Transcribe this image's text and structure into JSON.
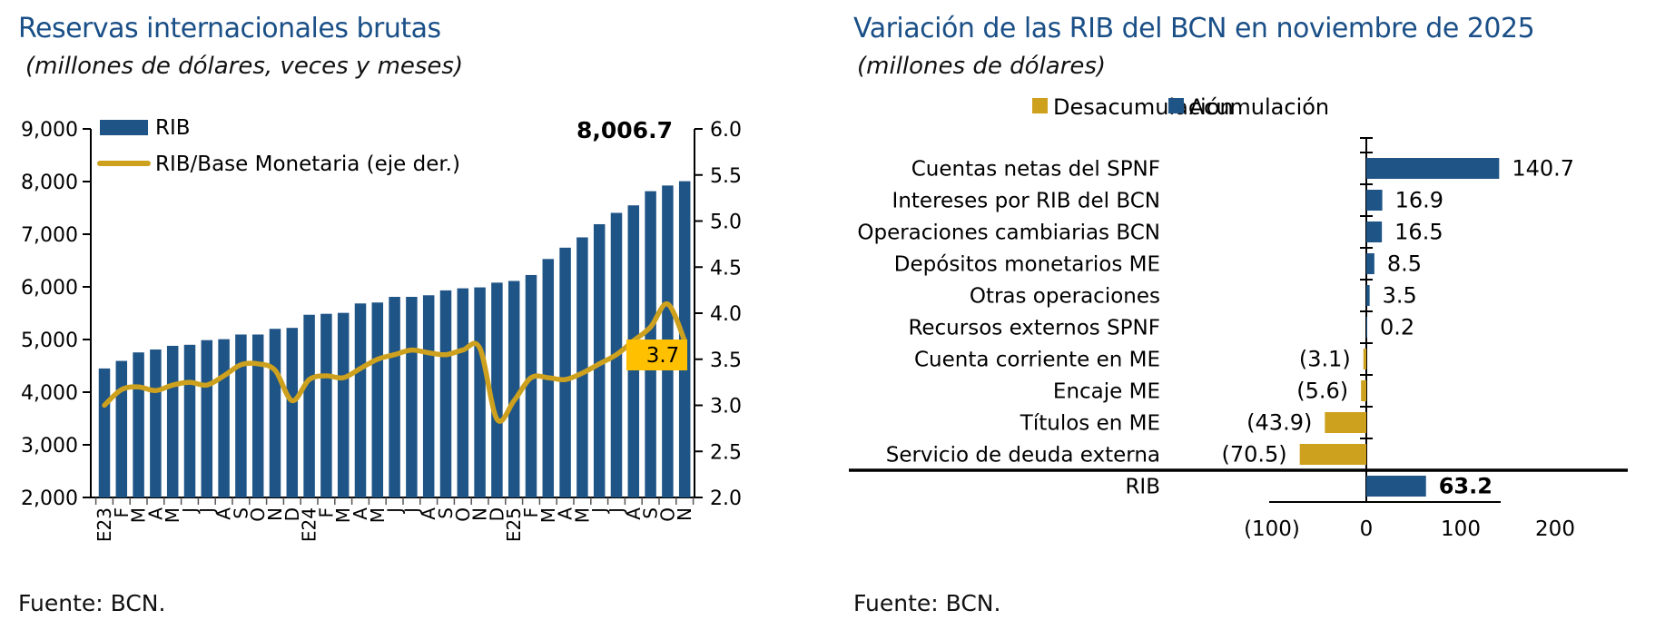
{
  "colors": {
    "title_blue": "#1A4F87",
    "bar_blue": "#1F5486",
    "gold": "#CDA11E",
    "label_box_gold": "#FFC000",
    "axis_black": "#000000"
  },
  "chart_data": [
    {
      "type": "bar",
      "title": "Reservas internacionales brutas",
      "subtitle": "(millones de dólares, veces y meses)",
      "source": "Fuente: BCN.",
      "legend_position": "top-left",
      "categories": [
        "E23",
        "F",
        "M",
        "A",
        "M",
        "J",
        "J",
        "A",
        "S",
        "O",
        "N",
        "D",
        "E24",
        "F",
        "M",
        "A",
        "M",
        "J",
        "J",
        "A",
        "S",
        "O",
        "N",
        "D",
        "E25",
        "F",
        "M",
        "A",
        "M",
        "J",
        "J",
        "A",
        "S",
        "O",
        "N"
      ],
      "series": [
        {
          "name": "RIB",
          "type": "bar",
          "axis": "left",
          "color": "#1F5486",
          "values": [
            4450,
            4594,
            4755,
            4810,
            4880,
            4900,
            4988,
            5006,
            5095,
            5095,
            5203,
            5221,
            5470,
            5488,
            5506,
            5685,
            5703,
            5810,
            5810,
            5840,
            5933,
            5972,
            5990,
            6080,
            6112,
            6225,
            6529,
            6744,
            6940,
            7190,
            7405,
            7548,
            7817,
            7925,
            8006.7
          ]
        },
        {
          "name": "RIB/Base Monetaria (eje der.)",
          "type": "line",
          "axis": "right",
          "color": "#CDA11E",
          "values": [
            3.0,
            3.17,
            3.2,
            3.16,
            3.22,
            3.25,
            3.22,
            3.32,
            3.44,
            3.45,
            3.38,
            3.05,
            3.28,
            3.32,
            3.3,
            3.4,
            3.5,
            3.55,
            3.6,
            3.57,
            3.55,
            3.6,
            3.62,
            2.85,
            3.05,
            3.3,
            3.3,
            3.28,
            3.35,
            3.45,
            3.55,
            3.7,
            3.85,
            4.1,
            3.7
          ]
        }
      ],
      "left_axis": {
        "min": 2000,
        "max": 9000,
        "tick_step": 1000,
        "tick_labels": [
          "9,000",
          "8,000",
          "7,000",
          "6,000",
          "5,000",
          "4,000",
          "3,000",
          "2,000"
        ]
      },
      "right_axis": {
        "min": 2.0,
        "max": 6.0,
        "tick_step": 0.5,
        "tick_labels": [
          "6.0",
          "5.5",
          "5.0",
          "4.5",
          "4.0",
          "3.5",
          "3.0",
          "2.5",
          "2.0"
        ]
      },
      "annotations": {
        "last_bar_label": "8,006.7",
        "last_line_label": "3.7",
        "line_label_bg": "#FFC000"
      }
    },
    {
      "type": "bar",
      "orientation": "horizontal",
      "title": "Variación de las RIB del BCN en noviembre de 2025",
      "subtitle": "(millones de dólares)",
      "source": "Fuente: BCN.",
      "legend": [
        {
          "label": "Desacumulación",
          "color": "#CDA11E"
        },
        {
          "label": "Acumulación",
          "color": "#1F5486"
        }
      ],
      "categories": [
        "Cuentas netas del SPNF",
        "Intereses por RIB del BCN",
        "Operaciones cambiarias BCN",
        "Depósitos monetarios ME",
        "Otras operaciones",
        "Recursos externos SPNF",
        "Cuenta corriente en ME",
        "Encaje ME",
        "Títulos en ME",
        "Servicio de deuda externa",
        "RIB"
      ],
      "values": [
        140.7,
        16.9,
        16.5,
        8.5,
        3.5,
        0.2,
        -3.1,
        -5.6,
        -43.9,
        -70.5,
        63.2
      ],
      "value_labels": [
        "140.7",
        "16.9",
        "16.5",
        "8.5",
        "3.5",
        "0.2",
        "(3.1)",
        "(5.6)",
        "(43.9)",
        "(70.5)",
        "63.2"
      ],
      "xlim": [
        -100,
        200
      ],
      "x_tick_values": [
        -100,
        0,
        100,
        200
      ],
      "x_tick_labels": [
        "(100)",
        "0",
        "100",
        "200"
      ]
    }
  ]
}
